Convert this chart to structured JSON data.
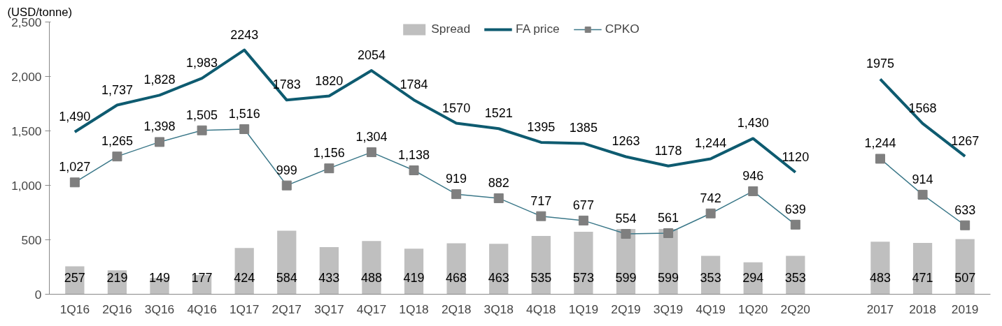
{
  "chart_data": {
    "type": "bar",
    "ylabel": "(USD/tonne)",
    "categories": [
      "1Q16",
      "2Q16",
      "3Q16",
      "4Q16",
      "1Q17",
      "2Q17",
      "3Q17",
      "4Q17",
      "1Q18",
      "2Q18",
      "3Q18",
      "4Q18",
      "1Q19",
      "2Q19",
      "3Q19",
      "4Q19",
      "1Q20",
      "2Q20",
      null,
      "2017",
      "2018",
      "2019"
    ],
    "series": [
      {
        "name": "Spread",
        "color": "#bfbfbf",
        "values": [
          257,
          219,
          149,
          177,
          424,
          584,
          433,
          488,
          419,
          468,
          463,
          535,
          573,
          599,
          599,
          353,
          294,
          353,
          null,
          483,
          471,
          507
        ],
        "value_labels": [
          "257",
          "219",
          "149",
          "177",
          "424",
          "584",
          "433",
          "488",
          "419",
          "468",
          "463",
          "535",
          "573",
          "599",
          "599",
          "353",
          "294",
          "353",
          null,
          "483",
          "471",
          "507"
        ]
      },
      {
        "name": "FA price",
        "type": "line",
        "color": "#0e5b70",
        "values": [
          1490,
          1737,
          1828,
          1983,
          2243,
          1783,
          1820,
          2054,
          1784,
          1570,
          1521,
          1395,
          1385,
          1263,
          1178,
          1244,
          1430,
          1120,
          null,
          1975,
          1568,
          1267
        ],
        "value_labels": [
          "1,490",
          "1,737",
          "1,828",
          "1,983",
          "2243",
          "1783",
          "1820",
          "2054",
          "1784",
          "1570",
          "1521",
          "1395",
          "1385",
          "1263",
          "1178",
          "1,244",
          "1,430",
          "1120",
          null,
          "1975",
          "1568",
          "1267"
        ]
      },
      {
        "name": "CPKO",
        "type": "line",
        "color": "#3b7889",
        "colors": [
          "#7f7f7f",
          "#7f7f7f",
          "#7f7f7f",
          "#7f7f7f",
          "#7f7f7f",
          "#7f7f7f",
          "#7f7f7f",
          "#7f7f7f",
          "#7f7f7f",
          "#7f7f7f",
          "#7f7f7f",
          "#7f7f7f",
          "#7f7f7f",
          "#7f7f7f",
          "#7f7f7f",
          "#7f7f7f",
          "#7f7f7f",
          "#7f7f7f",
          null,
          "#7f7f7f",
          "#7f7f7f",
          "#7f7f7f"
        ],
        "marker": "square",
        "values": [
          1027,
          1265,
          1398,
          1505,
          1516,
          999,
          1156,
          1304,
          1138,
          919,
          882,
          717,
          677,
          554,
          561,
          742,
          946,
          639,
          null,
          1244,
          914,
          633
        ],
        "value_labels": [
          "1,027",
          "1,265",
          "1,398",
          "1,505",
          "1,516",
          "999",
          "1,156",
          "1,304",
          "1,138",
          "919",
          "882",
          "717",
          "677",
          "554",
          "561",
          "742",
          "946",
          "639",
          null,
          "1,244",
          "914",
          "633"
        ]
      }
    ],
    "ylim": [
      0,
      2500
    ],
    "yticks": [
      0,
      {
        "value": 500,
        "label": "500"
      },
      {
        "value": 1000,
        "label": "1,000"
      },
      {
        "value": 1500,
        "label": "1,500"
      },
      {
        "value": 2000,
        "label": "2,000"
      },
      {
        "value": 2500,
        "label": "2,500"
      }
    ],
    "grid": false,
    "legend": "top"
  }
}
